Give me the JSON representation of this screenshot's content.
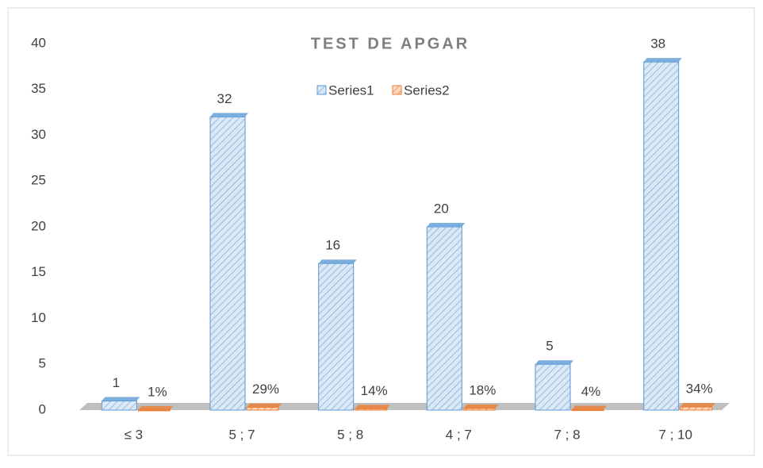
{
  "chart_data": {
    "type": "bar",
    "title": "TEST DE APGAR",
    "categories": [
      "≤ 3",
      "5 ; 7",
      "5 ; 8",
      "4 ; 7",
      "7 ; 8",
      "7 ; 10"
    ],
    "series": [
      {
        "name": "Series1",
        "color": "#5b9bd5",
        "values": [
          1,
          32,
          16,
          20,
          5,
          38
        ]
      },
      {
        "name": "Series2",
        "color": "#ed7d31",
        "values": [
          0.01,
          0.29,
          0.14,
          0.18,
          0.04,
          0.34
        ],
        "value_labels": [
          "1%",
          "29%",
          "14%",
          "18%",
          "4%",
          "34%"
        ]
      }
    ],
    "ylim": [
      0,
      40
    ],
    "yticks": [
      0,
      5,
      10,
      15,
      20,
      25,
      30,
      35,
      40
    ],
    "grid": false,
    "legend": "top"
  }
}
